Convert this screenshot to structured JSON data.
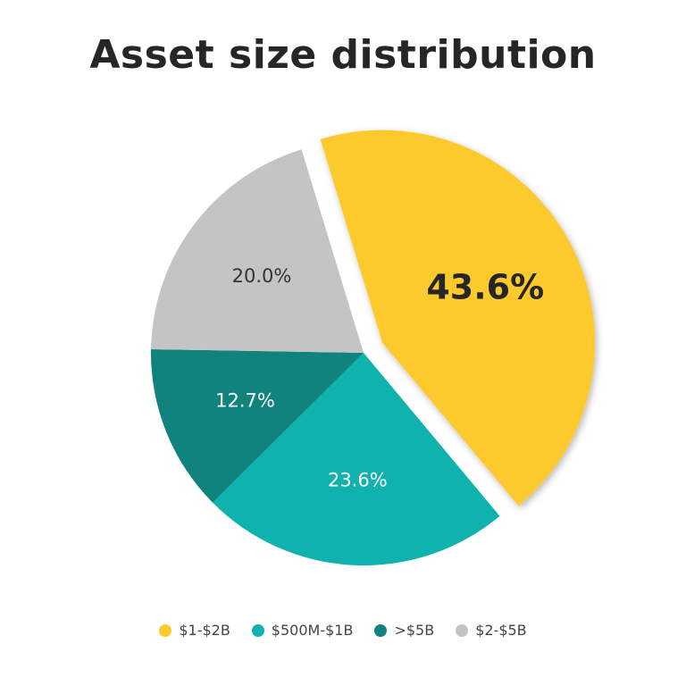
{
  "chart_data": {
    "type": "pie",
    "title": "Asset size distribution",
    "slices": [
      {
        "label": "$1-$2B",
        "value": 43.6,
        "value_label": "43.6%",
        "color": "#FDCA2F",
        "label_color": "#262626",
        "exploded": true,
        "bold_label": true
      },
      {
        "label": "$500M-$1B",
        "value": 23.6,
        "value_label": "23.6%",
        "color": "#0FB2AC",
        "label_color": "#ffffff",
        "exploded": false,
        "bold_label": false
      },
      {
        "label": ">$5B",
        "value": 12.7,
        "value_label": "12.7%",
        "color": "#0F837C",
        "label_color": "#ffffff",
        "exploded": false,
        "bold_label": false
      },
      {
        "label": "$2-$5B",
        "value": 20.0,
        "value_label": "20.0%",
        "color": "#C4C4C4",
        "label_color": "#333333",
        "exploded": false,
        "bold_label": false
      }
    ],
    "legend_position": "bottom"
  }
}
